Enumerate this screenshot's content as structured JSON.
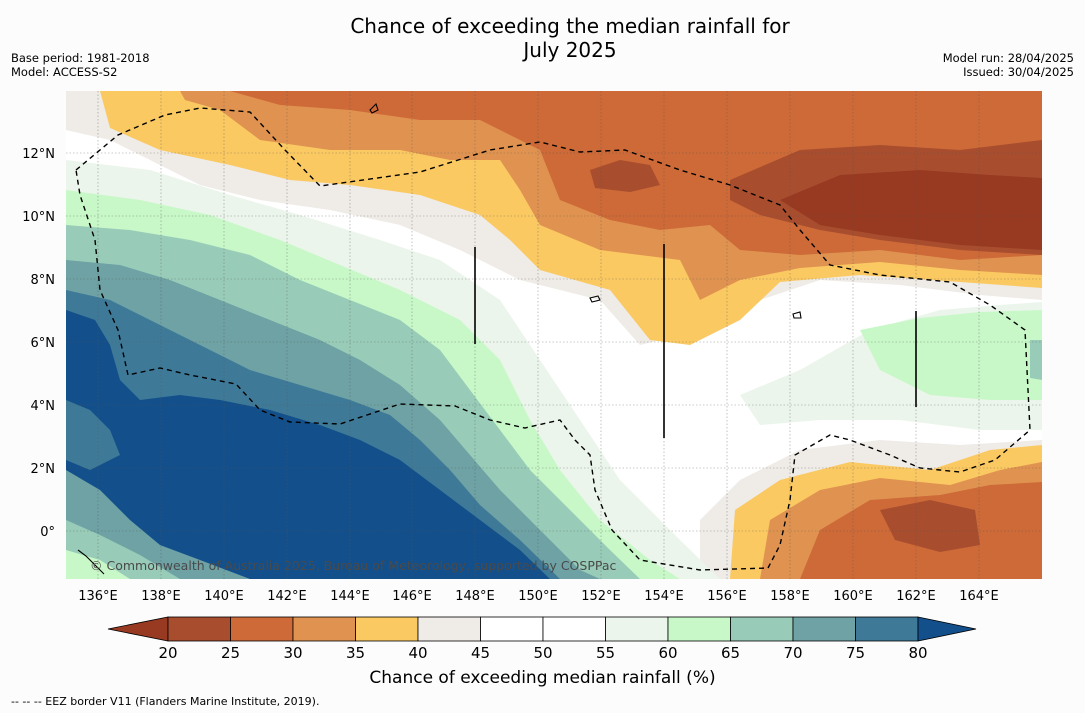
{
  "header": {
    "title_line1": "Chance of exceeding the median rainfall for",
    "title_line2": "July 2025",
    "base_period": "Base period: 1981-2018",
    "model": "Model: ACCESS-S2",
    "model_run": "Model run: 28/04/2025",
    "issued": "Issued: 30/04/2025"
  },
  "map": {
    "lon_labels": [
      "136°E",
      "138°E",
      "140°E",
      "142°E",
      "144°E",
      "146°E",
      "148°E",
      "150°E",
      "152°E",
      "154°E",
      "156°E",
      "158°E",
      "160°E",
      "162°E",
      "164°E"
    ],
    "lat_labels": [
      "12°N",
      "10°N",
      "8°N",
      "6°N",
      "4°N",
      "2°N",
      "0°"
    ],
    "copyright": "© Commonwealth of Australia 2025, Bureau of Meteorology, supported by COSPPac",
    "colors": {
      "c20_25": "#a84e2e",
      "c25_30": "#cd6a38",
      "c30_35": "#e09350",
      "c35_40": "#fbc962",
      "c40_45": "#efebe7",
      "c45_55": "#ffffff",
      "c55_60": "#ebf5eb",
      "c60_65": "#c8f8c8",
      "c65_70": "#98ccb8",
      "c70_75": "#6ea2a4",
      "c75_80": "#3e7a98",
      "c80": "#134f8a",
      "cbelow20": "#983a22"
    }
  },
  "colorbar": {
    "ticks": [
      "20",
      "25",
      "30",
      "35",
      "40",
      "45",
      "50",
      "55",
      "60",
      "65",
      "70",
      "75",
      "80"
    ],
    "colors": [
      "#a84e2e",
      "#cd6a38",
      "#e09350",
      "#fbc962",
      "#efebe7",
      "#ffffff",
      "#ffffff",
      "#ebf5eb",
      "#c8f8c8",
      "#98ccb8",
      "#6ea2a4",
      "#3e7a98"
    ],
    "below_color": "#983a22",
    "above_color": "#134f8a",
    "label": "Chance of exceeding median rainfall (%)"
  },
  "footnote": "--  --  -- EEZ border V11 (Flanders Marine Institute, 2019)."
}
